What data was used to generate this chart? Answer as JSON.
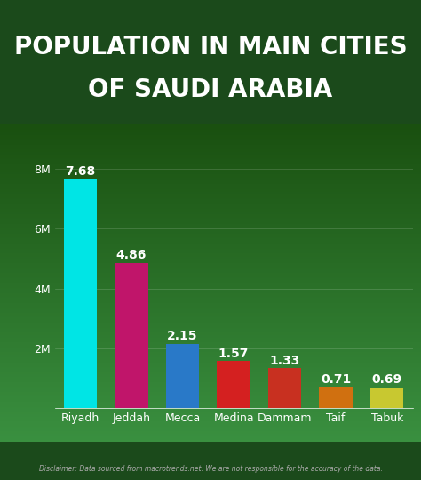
{
  "title_line1": "POPULATION IN MAIN CITIES",
  "title_line2": "OF SAUDI ARABIA",
  "categories": [
    "Riyadh",
    "Jeddah",
    "Mecca",
    "Medina",
    "Dammam",
    "Taif",
    "Tabuk"
  ],
  "values": [
    7.68,
    4.86,
    2.15,
    1.57,
    1.33,
    0.71,
    0.69
  ],
  "bar_colors": [
    "#00E5E5",
    "#C0156A",
    "#2979C8",
    "#D42020",
    "#C83020",
    "#D07010",
    "#C8C830"
  ],
  "title_bg_color": "#1A6B2A",
  "chart_bg_color_bottom": "#1B4A1B",
  "title_text_color": "#FFFFFF",
  "axis_text_color": "#FFFFFF",
  "yticks": [
    0,
    2000000,
    4000000,
    6000000,
    8000000
  ],
  "ytick_labels": [
    "",
    "2M",
    "4M",
    "6M",
    "8M"
  ],
  "value_label_color": "#FFFFFF",
  "disclaimer": "Disclaimer: Data sourced from macrotrends.net. We are not responsible for the accuracy of the data.",
  "disclaimer_color": "#AAAAAA",
  "bar_label_fontsize": 10,
  "xtick_fontsize": 9,
  "ytick_fontsize": 9,
  "title_fontsize_line1": 20,
  "title_fontsize_line2": 20,
  "grid_color": [
    1,
    1,
    1,
    0.2
  ]
}
